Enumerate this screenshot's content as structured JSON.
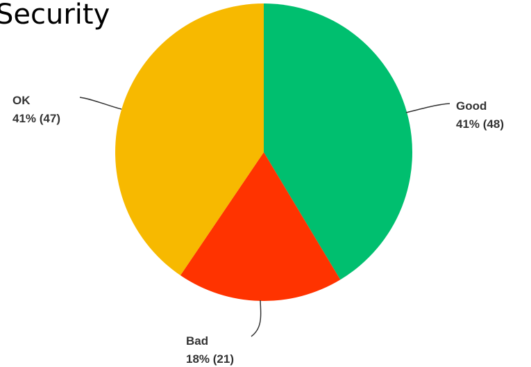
{
  "chart_data": {
    "type": "pie",
    "title": "Security",
    "slices": [
      {
        "name": "Good",
        "value": 48,
        "percent_label": "41% (48)",
        "color": "#00BF6F"
      },
      {
        "name": "Bad",
        "value": 21,
        "percent_label": "18% (21)",
        "color": "#FF3300"
      },
      {
        "name": "OK",
        "value": 47,
        "percent_label": "41% (47)",
        "color": "#F7B900"
      }
    ],
    "start_angle": "12 o'clock",
    "direction": "clockwise",
    "legend": "none",
    "labels": "outside with leader lines"
  }
}
